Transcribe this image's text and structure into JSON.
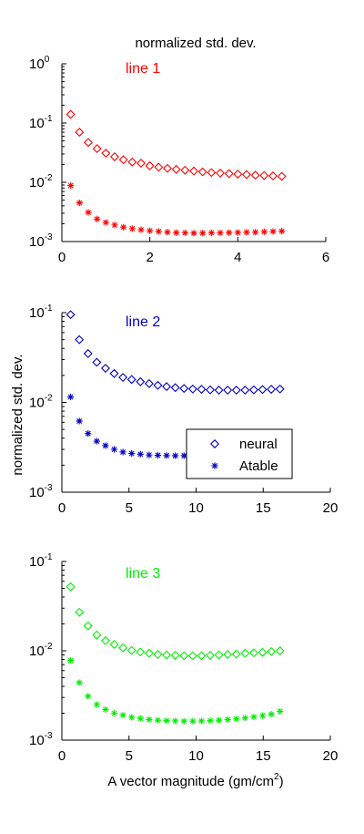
{
  "figure": {
    "title": "normalized std. dev.",
    "ylabel": "normalized std. dev.",
    "xlabel_main": "A vector magnitude (gm/cm",
    "xlabel_sup": "2",
    "xlabel_close": ")"
  },
  "chart_data": [
    {
      "type": "scatter",
      "annotation": "line 1",
      "annotation_color": "#ff0000",
      "xlim": [
        0,
        6
      ],
      "xticks": [
        0,
        2,
        4,
        6
      ],
      "ylim_log10": [
        -3,
        0
      ],
      "y_scale": "log",
      "yticks": [
        {
          "base": "10",
          "exp": "-3"
        },
        {
          "base": "10",
          "exp": "-2"
        },
        {
          "base": "10",
          "exp": "-1"
        },
        {
          "base": "10",
          "exp": "0"
        }
      ],
      "series": [
        {
          "marker": "diamond",
          "color": "#ff0000",
          "x": [
            0.2,
            0.4,
            0.6,
            0.8,
            1.0,
            1.2,
            1.4,
            1.6,
            1.8,
            2.0,
            2.2,
            2.4,
            2.6,
            2.8,
            3.0,
            3.2,
            3.4,
            3.6,
            3.8,
            4.0,
            4.2,
            4.4,
            4.6,
            4.8,
            5.0
          ],
          "y": [
            0.14,
            0.07,
            0.047,
            0.037,
            0.031,
            0.027,
            0.024,
            0.022,
            0.021,
            0.019,
            0.018,
            0.0172,
            0.0165,
            0.016,
            0.0155,
            0.015,
            0.0146,
            0.0143,
            0.014,
            0.0137,
            0.0135,
            0.0132,
            0.013,
            0.0128,
            0.0126
          ]
        },
        {
          "marker": "star",
          "color": "#ff0000",
          "x": [
            0.2,
            0.4,
            0.6,
            0.8,
            1.0,
            1.2,
            1.4,
            1.6,
            1.8,
            2.0,
            2.2,
            2.4,
            2.6,
            2.8,
            3.0,
            3.2,
            3.4,
            3.6,
            3.8,
            4.0,
            4.2,
            4.4,
            4.6,
            4.8,
            5.0
          ],
          "y": [
            0.0088,
            0.0045,
            0.0031,
            0.0024,
            0.0021,
            0.0019,
            0.00175,
            0.00165,
            0.00158,
            0.00152,
            0.00148,
            0.00144,
            0.00141,
            0.0014,
            0.00139,
            0.00139,
            0.0014,
            0.0014,
            0.00141,
            0.00142,
            0.00143,
            0.00144,
            0.00146,
            0.00148,
            0.0015
          ]
        }
      ]
    },
    {
      "type": "scatter",
      "annotation": "line 2",
      "annotation_color": "#0000c0",
      "xlim": [
        0,
        20
      ],
      "xticks": [
        0,
        5,
        10,
        15,
        20
      ],
      "ylim_log10": [
        -3,
        -1
      ],
      "y_scale": "log",
      "yticks": [
        {
          "base": "10",
          "exp": "-3"
        },
        {
          "base": "10",
          "exp": "-2"
        },
        {
          "base": "10",
          "exp": "-1"
        }
      ],
      "legend": [
        "neural",
        "Atable"
      ],
      "legend_position": "right",
      "series": [
        {
          "name": "neural",
          "marker": "diamond",
          "color": "#0000c0",
          "x": [
            0.65,
            1.3,
            1.95,
            2.6,
            3.25,
            3.9,
            4.55,
            5.2,
            5.85,
            6.5,
            7.15,
            7.8,
            8.45,
            9.1,
            9.75,
            10.4,
            11.05,
            11.7,
            12.35,
            13.0,
            13.65,
            14.3,
            14.95,
            15.6,
            16.25
          ],
          "y": [
            0.095,
            0.05,
            0.035,
            0.028,
            0.024,
            0.021,
            0.019,
            0.018,
            0.017,
            0.0162,
            0.0155,
            0.015,
            0.0146,
            0.0143,
            0.0141,
            0.014,
            0.0138,
            0.0137,
            0.0137,
            0.0137,
            0.0137,
            0.0138,
            0.0139,
            0.014,
            0.0141
          ]
        },
        {
          "name": "Atable",
          "marker": "star",
          "color": "#0000c0",
          "x": [
            0.65,
            1.3,
            1.95,
            2.6,
            3.25,
            3.9,
            4.55,
            5.2,
            5.85,
            6.5,
            7.15,
            7.8,
            8.45,
            9.1,
            9.75
          ],
          "y": [
            0.0115,
            0.0062,
            0.0045,
            0.0037,
            0.0033,
            0.003,
            0.0028,
            0.0027,
            0.00265,
            0.0026,
            0.00258,
            0.00256,
            0.00255,
            0.00255,
            0.00255
          ]
        }
      ]
    },
    {
      "type": "scatter",
      "annotation": "line 3",
      "annotation_color": "#00ee00",
      "xlim": [
        0,
        20
      ],
      "xticks": [
        0,
        5,
        10,
        15,
        20
      ],
      "ylim_log10": [
        -3,
        -1
      ],
      "y_scale": "log",
      "yticks": [
        {
          "base": "10",
          "exp": "-3"
        },
        {
          "base": "10",
          "exp": "-2"
        },
        {
          "base": "10",
          "exp": "-1"
        }
      ],
      "series": [
        {
          "marker": "diamond",
          "color": "#00ee00",
          "x": [
            0.65,
            1.3,
            1.95,
            2.6,
            3.25,
            3.9,
            4.55,
            5.2,
            5.85,
            6.5,
            7.15,
            7.8,
            8.45,
            9.1,
            9.75,
            10.4,
            11.05,
            11.7,
            12.35,
            13.0,
            13.65,
            14.3,
            14.95,
            15.6,
            16.25
          ],
          "y": [
            0.052,
            0.027,
            0.019,
            0.015,
            0.013,
            0.0118,
            0.0108,
            0.0101,
            0.0097,
            0.0094,
            0.0091,
            0.009,
            0.0089,
            0.0088,
            0.0088,
            0.0088,
            0.0089,
            0.009,
            0.0091,
            0.0092,
            0.0094,
            0.0095,
            0.0096,
            0.0098,
            0.01
          ]
        },
        {
          "marker": "star",
          "color": "#00ee00",
          "x": [
            0.65,
            1.3,
            1.95,
            2.6,
            3.25,
            3.9,
            4.55,
            5.2,
            5.85,
            6.5,
            7.15,
            7.8,
            8.45,
            9.1,
            9.75,
            10.4,
            11.05,
            11.7,
            12.35,
            13.0,
            13.65,
            14.3,
            14.95,
            15.6,
            16.25
          ],
          "y": [
            0.0078,
            0.0044,
            0.0031,
            0.0025,
            0.0022,
            0.002,
            0.0019,
            0.0018,
            0.00175,
            0.0017,
            0.00167,
            0.00165,
            0.00164,
            0.00163,
            0.00163,
            0.00164,
            0.00165,
            0.00167,
            0.0017,
            0.00173,
            0.00177,
            0.00182,
            0.00188,
            0.00195,
            0.0021
          ]
        }
      ]
    }
  ]
}
